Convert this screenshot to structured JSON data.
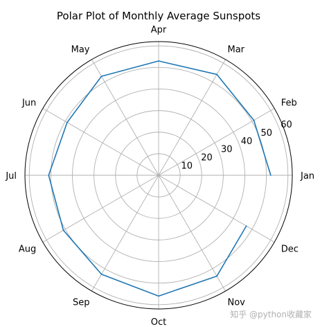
{
  "chart_data": {
    "type": "line",
    "projection": "polar",
    "title": "Polar Plot of Monthly Average Sunspots",
    "categories": [
      "Jan",
      "Feb",
      "Mar",
      "Apr",
      "May",
      "Jun",
      "Jul",
      "Aug",
      "Sep",
      "Oct",
      "Nov",
      "Dec"
    ],
    "series": [
      {
        "color": "#1f77b4",
        "values": [
          52,
          51,
          54,
          53,
          53,
          49,
          51,
          51,
          53,
          56,
          54,
          47
        ]
      }
    ],
    "rlim": [
      0,
      62
    ],
    "r_ticks": [
      10,
      20,
      30,
      40,
      50,
      60
    ],
    "theta_start": "east",
    "theta_direction": "counterclockwise",
    "closed_line": false,
    "grid": true,
    "grid_color": "#b0b0b0",
    "frame_color": "#000000"
  },
  "watermark": "知乎 @python收藏家"
}
